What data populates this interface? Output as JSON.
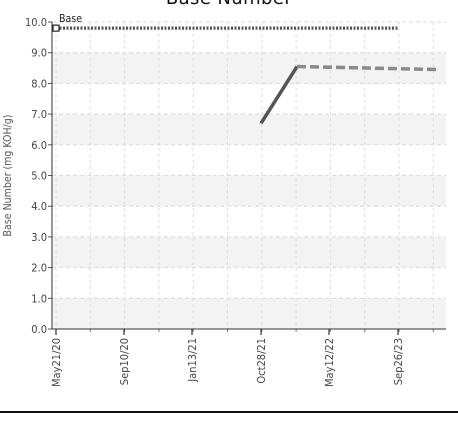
{
  "chart_data": {
    "type": "line",
    "title": "Base Number",
    "ylabel": "Base Number (mg KOH/g)",
    "xlabel": "",
    "x_ticks": [
      "May21/20",
      "Sep10/20",
      "Jan13/21",
      "Oct28/21",
      "May12/22",
      "Sep26/23"
    ],
    "y_ticks": [
      "0.0",
      "1.0",
      "2.0",
      "3.0",
      "4.0",
      "5.0",
      "6.0",
      "7.0",
      "8.0",
      "9.0",
      "10.0"
    ],
    "ylim": [
      0,
      10
    ],
    "grid": true,
    "legend": "none",
    "series": [
      {
        "name": "Base",
        "style": "dotted",
        "color": "#555555",
        "points": [
          {
            "x": "May21/20",
            "y": 9.8
          },
          {
            "x": "Sep26/23",
            "y": 9.8
          }
        ]
      },
      {
        "name": "",
        "style": "solid",
        "color": "#555555",
        "points": [
          {
            "x": "Oct28/21",
            "y": 6.7
          },
          {
            "x": "Mar01/22",
            "y": 8.55
          }
        ]
      },
      {
        "name": "",
        "style": "dashed",
        "color": "#8a8a8a",
        "points": [
          {
            "x": "Mar01/22",
            "y": 8.55
          },
          {
            "x": "Feb15/24",
            "y": 8.45
          }
        ]
      }
    ]
  }
}
